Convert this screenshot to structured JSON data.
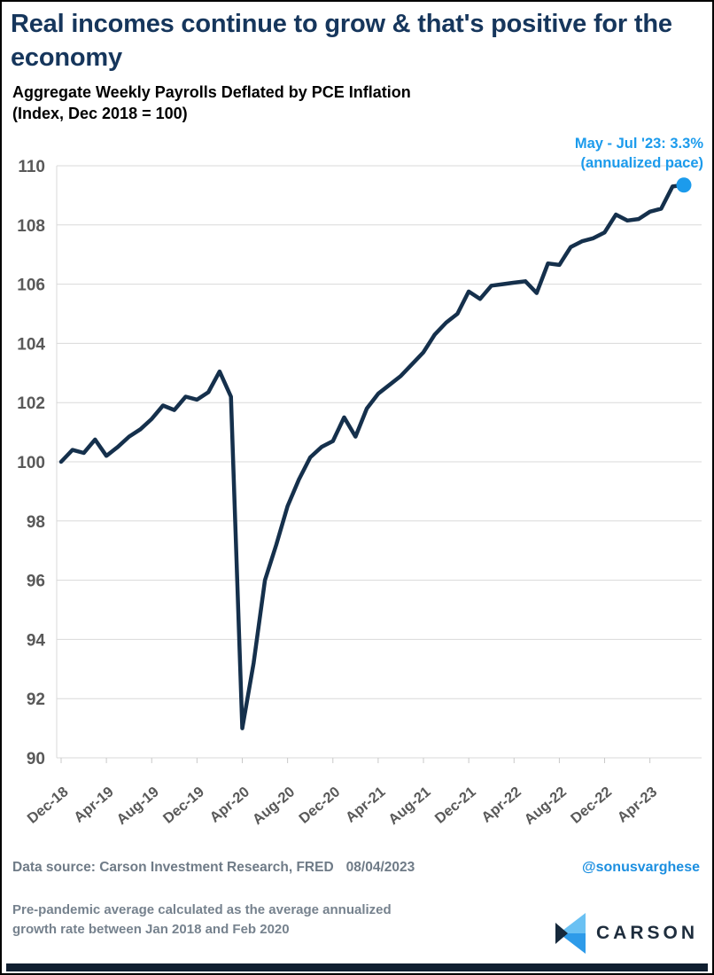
{
  "header": {
    "title": "Real incomes continue to grow & that's positive for the economy",
    "subtitle_line1": "Aggregate Weekly Payrolls Deflated by PCE Inflation",
    "subtitle_line2": "(Index, Dec 2018 = 100)"
  },
  "chart_data": {
    "type": "line",
    "title": "Aggregate Weekly Payrolls Deflated by PCE Inflation (Index, Dec 2018 = 100)",
    "x": [
      "Dec-18",
      "Jan-19",
      "Feb-19",
      "Mar-19",
      "Apr-19",
      "May-19",
      "Jun-19",
      "Jul-19",
      "Aug-19",
      "Sep-19",
      "Oct-19",
      "Nov-19",
      "Dec-19",
      "Jan-20",
      "Feb-20",
      "Mar-20",
      "Apr-20",
      "May-20",
      "Jun-20",
      "Jul-20",
      "Aug-20",
      "Sep-20",
      "Oct-20",
      "Nov-20",
      "Dec-20",
      "Jan-21",
      "Feb-21",
      "Mar-21",
      "Apr-21",
      "May-21",
      "Jun-21",
      "Jul-21",
      "Aug-21",
      "Sep-21",
      "Oct-21",
      "Nov-21",
      "Dec-21",
      "Jan-22",
      "Feb-22",
      "Mar-22",
      "Apr-22",
      "May-22",
      "Jun-22",
      "Jul-22",
      "Aug-22",
      "Sep-22",
      "Oct-22",
      "Nov-22",
      "Dec-22",
      "Jan-23",
      "Feb-23",
      "Mar-23",
      "Apr-23",
      "May-23",
      "Jun-23",
      "Jul-23"
    ],
    "series": [
      {
        "name": "Aggregate Weekly Payrolls Deflated by PCE Inflation",
        "values": [
          100.0,
          100.4,
          100.3,
          100.75,
          100.2,
          100.5,
          100.85,
          101.1,
          101.45,
          101.9,
          101.75,
          102.2,
          102.1,
          102.35,
          103.05,
          102.2,
          91.0,
          93.2,
          96.0,
          97.2,
          98.5,
          99.4,
          100.15,
          100.5,
          100.7,
          101.5,
          100.85,
          101.8,
          102.3,
          102.6,
          102.9,
          103.3,
          103.7,
          104.3,
          104.7,
          105.0,
          105.75,
          105.5,
          105.95,
          106.0,
          106.05,
          106.1,
          105.7,
          106.7,
          106.65,
          107.25,
          107.45,
          107.55,
          107.75,
          108.35,
          108.15,
          108.2,
          108.45,
          108.55,
          109.3,
          109.35
        ]
      }
    ],
    "x_tick_labels": [
      "Dec-18",
      "Apr-19",
      "Aug-19",
      "Dec-19",
      "Apr-20",
      "Aug-20",
      "Dec-20",
      "Apr-21",
      "Aug-21",
      "Dec-21",
      "Apr-22",
      "Aug-22",
      "Dec-22",
      "Apr-23"
    ],
    "x_tick_every": 4,
    "yticks": [
      90,
      92,
      94,
      96,
      98,
      100,
      102,
      104,
      106,
      108,
      110
    ],
    "ylim": [
      90,
      110
    ],
    "grid": "horizontal",
    "legend": "none",
    "line_color": "#15304C",
    "grid_color": "#D9D9D9",
    "tick_color": "#595959",
    "annotation": {
      "line1": "May - Jul '23: 3.3%",
      "line2": "(annualized pace)",
      "color": "#1C9BEC"
    },
    "endpoint_marker": {
      "month": "Jul-23",
      "value": 109.35,
      "color": "#1C9BEC"
    }
  },
  "footer": {
    "data_source": "Data source: Carson Investment Research, FRED",
    "date": "08/04/2023",
    "handle": "@sonusvarghese",
    "note_line1": "Pre-pandemic average calculated as the average annualized",
    "note_line2": "growth rate between Jan 2018 and Feb 2020",
    "brand": "CARSON"
  },
  "colors": {
    "title_navy": "#16365C",
    "line_navy": "#15304C",
    "accent_blue": "#1C9BEC",
    "handle_blue": "#1C8FE0",
    "footer_gray": "#6F7B87",
    "logo_light_blue": "#6AC1F3",
    "logo_mid_blue": "#2E9BE9",
    "logo_dark_navy": "#16293C"
  }
}
